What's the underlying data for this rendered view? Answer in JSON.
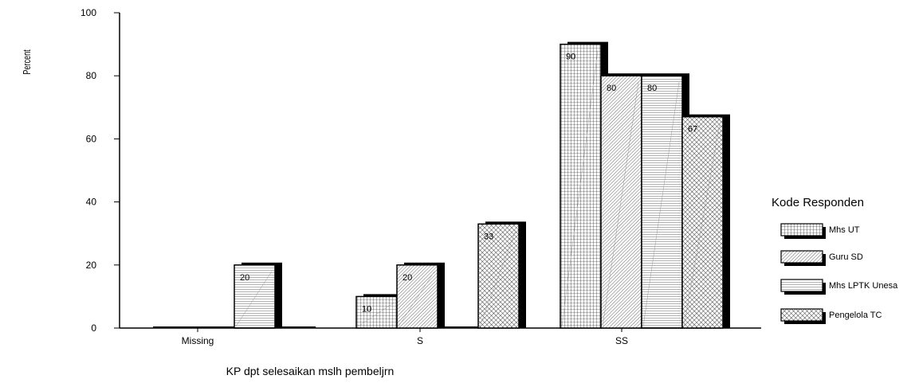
{
  "chart_data": {
    "type": "bar",
    "categories": [
      "Missing",
      "S",
      "SS"
    ],
    "series": [
      {
        "name": "Mhs UT",
        "values": [
          0,
          10,
          90
        ],
        "pattern": "grid"
      },
      {
        "name": "Guru SD",
        "values": [
          0,
          20,
          80
        ],
        "pattern": "diag-dense"
      },
      {
        "name": "Mhs LPTK Unesa",
        "values": [
          20,
          0,
          80
        ],
        "pattern": "horizontal"
      },
      {
        "name": "Pengelola TC",
        "values": [
          0,
          33,
          67
        ],
        "pattern": "crosshatch"
      }
    ],
    "data_labels": {
      "Missing": {
        "Mhs LPTK Unesa": "20"
      },
      "S": {
        "Mhs UT": "10",
        "Guru SD": "20",
        "Pengelola TC": "33"
      },
      "SS": {
        "Mhs UT": "90",
        "Guru SD": "80",
        "Mhs LPTK Unesa": "80",
        "Pengelola TC": "67"
      }
    },
    "xlabel": "KP dpt selesaikan mslh pembeljrn",
    "ylabel": "Percent",
    "ylim": [
      0,
      100
    ],
    "yticks": [
      0,
      20,
      40,
      60,
      80,
      100
    ],
    "legend": {
      "title": "Kode Responden",
      "placement": "right"
    },
    "grid": false,
    "colors": {
      "fill": "#ffffff",
      "stroke": "#000000",
      "shadow": "#000000"
    }
  }
}
